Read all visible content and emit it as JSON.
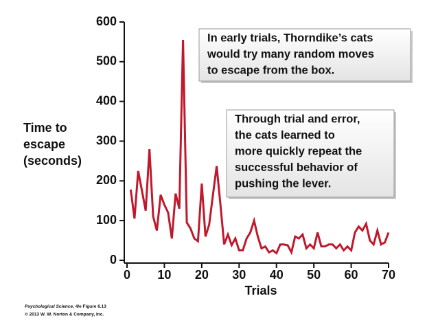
{
  "chart_data": {
    "type": "line",
    "xlabel": "Trials",
    "ylabel_lines": [
      "Time to",
      "escape",
      "(seconds)"
    ],
    "x": [
      1,
      2,
      3,
      4,
      5,
      6,
      7,
      8,
      9,
      10,
      11,
      12,
      13,
      14,
      15,
      16,
      17,
      18,
      19,
      20,
      21,
      22,
      23,
      24,
      25,
      26,
      27,
      28,
      29,
      30,
      31,
      32,
      33,
      34,
      35,
      36,
      37,
      38,
      39,
      40,
      41,
      42,
      43,
      44,
      45,
      46,
      47,
      48,
      49,
      50,
      51,
      52,
      53,
      54,
      55,
      56,
      57,
      58,
      59,
      60,
      61,
      62,
      63,
      64,
      65,
      66,
      67,
      68,
      69,
      70
    ],
    "values": [
      178,
      105,
      225,
      175,
      125,
      280,
      110,
      75,
      165,
      140,
      120,
      55,
      168,
      130,
      555,
      95,
      80,
      55,
      48,
      193,
      60,
      90,
      165,
      237,
      140,
      40,
      65,
      38,
      55,
      25,
      25,
      55,
      70,
      100,
      60,
      30,
      35,
      20,
      25,
      18,
      40,
      40,
      38,
      20,
      60,
      55,
      65,
      30,
      40,
      30,
      70,
      35,
      35,
      40,
      40,
      30,
      40,
      25,
      35,
      25,
      70,
      85,
      75,
      92,
      50,
      40,
      75,
      40,
      45,
      70
    ],
    "color": "#c0182c",
    "xlim": [
      0,
      70
    ],
    "xticks": [
      0,
      10,
      20,
      30,
      40,
      50,
      60,
      70
    ],
    "ylim": [
      0,
      600
    ],
    "yticks": [
      0,
      100,
      200,
      300,
      400,
      500,
      600
    ],
    "annotations": [
      {
        "lines": [
          "In early trials, Thorndike’s cats",
          "would try many random moves",
          "to escape from the box."
        ]
      },
      {
        "lines": [
          "Through trial and error,",
          "the cats learned to",
          "more quickly repeat the",
          "successful behavior of",
          "pushing the lever."
        ]
      }
    ],
    "credit": {
      "source": "Psychological Science",
      "figure": ", 4/e Figure 6.13",
      "copyright": "© 2013 W. W. Norton & Company, Inc."
    }
  }
}
